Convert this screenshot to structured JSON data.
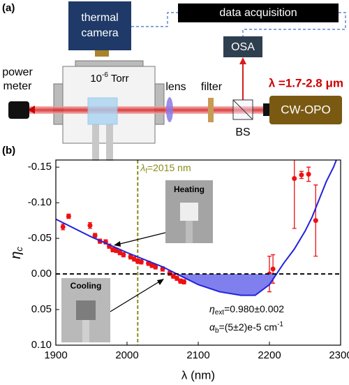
{
  "diagram": {
    "panel_label": "(a)",
    "thermal_camera": [
      "thermal",
      "camera"
    ],
    "data_acquisition": "data acquisition",
    "osa": "OSA",
    "power_meter": [
      "power",
      "meter"
    ],
    "pressure": {
      "base": "10",
      "superscript": "-6",
      "text": " Torr"
    },
    "lens": "lens",
    "filter": "filter",
    "wavelength": "λ =1.7-2.8 μm",
    "laser": "CW-OPO",
    "beam_splitter": "BS"
  },
  "chart_data": {
    "type": "scatter",
    "panel_label": "(b)",
    "x_label": "λ (nm)",
    "y_label": {
      "symbol": "η",
      "subscript": "c"
    },
    "xlim": [
      1900,
      2300
    ],
    "xticks": [
      1900,
      2000,
      2100,
      2200,
      2300
    ],
    "ylim": [
      0.1,
      -0.16
    ],
    "yticks": [
      -0.15,
      {
        "value": -0.1,
        "label": "-0.10"
      },
      -0.05,
      {
        "value": 0,
        "label": "0.00"
      },
      0.05,
      {
        "value": 0.1,
        "label": "0.10"
      }
    ],
    "hline": 0,
    "vline": {
      "x": 2015,
      "color": "#8b8b1a",
      "label": {
        "symbol": "λ",
        "subscript": "f",
        "text": "=2015 nm"
      }
    },
    "series": [
      {
        "color": "#ee1111",
        "x": [
          1910,
          1918,
          1948,
          1955,
          1962,
          1970,
          1975,
          1980,
          1985,
          1990,
          1995,
          2005,
          2010,
          2015,
          2020,
          2030,
          2035,
          2040,
          2050,
          2060,
          2065,
          2070,
          2075,
          2080,
          2200,
          2205,
          2235,
          2245,
          2255,
          2265
        ],
        "values": [
          -0.066,
          -0.081,
          -0.068,
          -0.054,
          -0.046,
          -0.045,
          -0.039,
          -0.034,
          -0.033,
          -0.03,
          -0.027,
          -0.024,
          -0.021,
          -0.018,
          -0.017,
          -0.015,
          -0.012,
          -0.01,
          -0.007,
          -0.001,
          0.003,
          0.006,
          0.01,
          0.011,
          0.0,
          -0.007,
          -0.134,
          -0.139,
          -0.14,
          -0.075
        ],
        "errors": [
          0.004,
          0.003,
          0.004,
          0.003,
          0.003,
          0.003,
          0.003,
          0.003,
          0.003,
          0.003,
          0.003,
          0.003,
          0.003,
          0.003,
          0.003,
          0.003,
          0.003,
          0.003,
          0.003,
          0.003,
          0.003,
          0.003,
          0.003,
          0.003,
          0.025,
          0.02,
          0.07,
          0.005,
          0.01,
          0.05
        ]
      },
      {
        "color": "#2222dd",
        "fill_color": "#7f7fee",
        "line": true,
        "x": [
          1900,
          1950,
          2000,
          2050,
          2080,
          2100,
          2130,
          2160,
          2180,
          2200,
          2210,
          2220,
          2235,
          2250,
          2260,
          2270,
          2280,
          2290,
          2296
        ],
        "values": [
          -0.077,
          -0.052,
          -0.03,
          -0.01,
          0.005,
          0.015,
          0.025,
          0.03,
          0.03,
          0.015,
          0.0,
          -0.015,
          -0.035,
          -0.06,
          -0.08,
          -0.105,
          -0.13,
          -0.15,
          -0.165
        ]
      }
    ],
    "insets": {
      "heating": "Heating",
      "cooling": "Cooling"
    },
    "annotations": [
      {
        "symbol": "η",
        "subscript": "ext",
        "text": "=0.980±0.002"
      },
      {
        "symbol": "α",
        "subscript": "b",
        "text": "=(5±2)e-5 cm",
        "superscript": "-1"
      }
    ]
  }
}
